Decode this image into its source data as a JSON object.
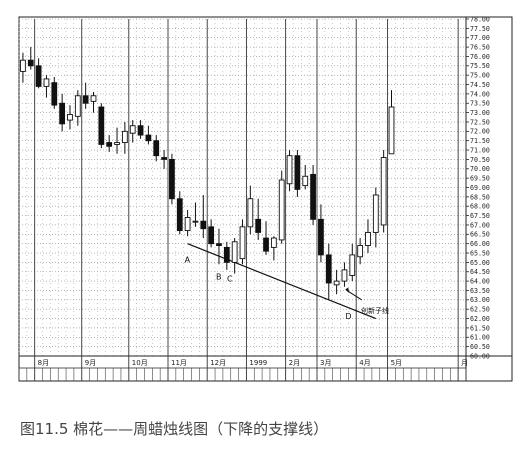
{
  "caption": "图11.5 棉花——周蜡烛线图（下降的支撑线）",
  "chart_data": {
    "type": "candlestick",
    "title": "",
    "xlabel": "",
    "ylabel": "",
    "ylim": [
      60.0,
      78.0
    ],
    "ytick_step": 0.5,
    "y_labels": [
      "78.00",
      "77.50",
      "77.00",
      "76.50",
      "76.00",
      "75.50",
      "75.00",
      "74.50",
      "74.00",
      "73.50",
      "73.00",
      "72.50",
      "72.00",
      "71.50",
      "71.00",
      "70.50",
      "70.00",
      "69.50",
      "69.00",
      "68.50",
      "68.00",
      "67.50",
      "67.00",
      "66.50",
      "66.00",
      "65.50",
      "65.00",
      "64.50",
      "64.00",
      "63.50",
      "63.00",
      "62.50",
      "62.00",
      "61.50",
      "61.00",
      "60.50",
      "60.00"
    ],
    "month_labels": [
      {
        "label": "8月",
        "week": 2
      },
      {
        "label": "9月",
        "week": 8
      },
      {
        "label": "10月",
        "week": 14
      },
      {
        "label": "11月",
        "week": 19
      },
      {
        "label": "12月",
        "week": 24
      },
      {
        "label": "1999",
        "week": 29
      },
      {
        "label": "2月",
        "week": 34
      },
      {
        "label": "3月",
        "week": 38
      },
      {
        "label": "4月",
        "week": 43
      },
      {
        "label": "5月",
        "week": 47
      },
      {
        "label": "月",
        "week": 56
      }
    ],
    "candles": [
      {
        "week": 0,
        "open": 75.2,
        "high": 76.2,
        "low": 74.6,
        "close": 75.8
      },
      {
        "week": 1,
        "open": 75.8,
        "high": 76.5,
        "low": 75.3,
        "close": 75.5
      },
      {
        "week": 2,
        "open": 75.5,
        "high": 75.9,
        "low": 74.3,
        "close": 74.4
      },
      {
        "week": 3,
        "open": 74.4,
        "high": 75.0,
        "low": 73.8,
        "close": 74.8
      },
      {
        "week": 4,
        "open": 74.6,
        "high": 74.9,
        "low": 73.2,
        "close": 73.4
      },
      {
        "week": 5,
        "open": 73.5,
        "high": 74.0,
        "low": 72.0,
        "close": 72.4
      },
      {
        "week": 6,
        "open": 72.6,
        "high": 73.4,
        "low": 72.1,
        "close": 72.9
      },
      {
        "week": 7,
        "open": 72.8,
        "high": 74.2,
        "low": 72.3,
        "close": 73.9
      },
      {
        "week": 8,
        "open": 73.9,
        "high": 74.6,
        "low": 73.2,
        "close": 73.5
      },
      {
        "week": 9,
        "open": 73.6,
        "high": 74.1,
        "low": 73.0,
        "close": 73.9
      },
      {
        "week": 10,
        "open": 73.3,
        "high": 73.5,
        "low": 71.1,
        "close": 71.3
      },
      {
        "week": 11,
        "open": 71.4,
        "high": 71.8,
        "low": 70.9,
        "close": 71.2
      },
      {
        "week": 12,
        "open": 71.3,
        "high": 72.2,
        "low": 70.8,
        "close": 71.4
      },
      {
        "week": 13,
        "open": 71.4,
        "high": 72.5,
        "low": 70.8,
        "close": 72.0
      },
      {
        "week": 14,
        "open": 71.9,
        "high": 72.6,
        "low": 71.4,
        "close": 72.3
      },
      {
        "week": 15,
        "open": 72.3,
        "high": 72.6,
        "low": 71.6,
        "close": 71.8
      },
      {
        "week": 16,
        "open": 71.8,
        "high": 72.3,
        "low": 71.3,
        "close": 71.5
      },
      {
        "week": 17,
        "open": 71.5,
        "high": 71.8,
        "low": 70.4,
        "close": 70.7
      },
      {
        "week": 18,
        "open": 70.6,
        "high": 71.0,
        "low": 70.0,
        "close": 70.5
      },
      {
        "week": 19,
        "open": 70.5,
        "high": 70.8,
        "low": 68.1,
        "close": 68.4
      },
      {
        "week": 20,
        "open": 68.4,
        "high": 68.8,
        "low": 66.5,
        "close": 66.7
      },
      {
        "week": 21,
        "open": 66.7,
        "high": 67.8,
        "low": 66.4,
        "close": 67.4
      },
      {
        "week": 22,
        "open": 67.2,
        "high": 68.2,
        "low": 66.9,
        "close": 67.2
      },
      {
        "week": 23,
        "open": 67.2,
        "high": 68.6,
        "low": 66.3,
        "close": 66.8
      },
      {
        "week": 24,
        "open": 66.9,
        "high": 67.3,
        "low": 65.8,
        "close": 66.0
      },
      {
        "week": 25,
        "open": 66.0,
        "high": 66.8,
        "low": 64.9,
        "close": 65.9
      },
      {
        "week": 26,
        "open": 65.8,
        "high": 66.1,
        "low": 64.6,
        "close": 65.0
      },
      {
        "week": 27,
        "open": 65.0,
        "high": 66.3,
        "low": 64.4,
        "close": 66.1
      },
      {
        "week": 28,
        "open": 65.2,
        "high": 67.3,
        "low": 64.9,
        "close": 66.9
      },
      {
        "week": 29,
        "open": 66.9,
        "high": 69.1,
        "low": 66.5,
        "close": 68.4
      },
      {
        "week": 30,
        "open": 67.3,
        "high": 68.4,
        "low": 66.2,
        "close": 66.6
      },
      {
        "week": 31,
        "open": 66.3,
        "high": 67.2,
        "low": 65.4,
        "close": 65.6
      },
      {
        "week": 32,
        "open": 65.8,
        "high": 66.4,
        "low": 65.1,
        "close": 66.3
      },
      {
        "week": 33,
        "open": 66.2,
        "high": 69.9,
        "low": 66.0,
        "close": 69.4
      },
      {
        "week": 34,
        "open": 69.2,
        "high": 71.0,
        "low": 68.8,
        "close": 70.7
      },
      {
        "week": 35,
        "open": 70.7,
        "high": 71.0,
        "low": 68.5,
        "close": 68.9
      },
      {
        "week": 36,
        "open": 69.1,
        "high": 70.2,
        "low": 68.9,
        "close": 69.6
      },
      {
        "week": 37,
        "open": 69.7,
        "high": 70.2,
        "low": 67.0,
        "close": 67.3
      },
      {
        "week": 38,
        "open": 67.3,
        "high": 68.1,
        "low": 65.0,
        "close": 65.4
      },
      {
        "week": 39,
        "open": 65.4,
        "high": 66.0,
        "low": 63.0,
        "close": 63.9
      },
      {
        "week": 40,
        "open": 63.8,
        "high": 64.6,
        "low": 63.3,
        "close": 64.0
      },
      {
        "week": 41,
        "open": 64.0,
        "high": 65.0,
        "low": 63.7,
        "close": 64.6
      },
      {
        "week": 42,
        "open": 64.3,
        "high": 66.0,
        "low": 64.0,
        "close": 65.4
      },
      {
        "week": 43,
        "open": 65.3,
        "high": 66.3,
        "low": 64.9,
        "close": 65.9
      },
      {
        "week": 44,
        "open": 65.9,
        "high": 67.3,
        "low": 65.5,
        "close": 66.6
      },
      {
        "week": 45,
        "open": 66.6,
        "high": 69.0,
        "low": 65.8,
        "close": 68.6
      },
      {
        "week": 46,
        "open": 67.0,
        "high": 71.0,
        "low": 66.6,
        "close": 70.6
      },
      {
        "week": 47,
        "open": 70.8,
        "high": 74.2,
        "low": 70.9,
        "close": 73.3
      }
    ],
    "trendline": {
      "from": {
        "week": 21,
        "value": 66.0
      },
      "to": {
        "week": 45,
        "value": 62.0
      }
    },
    "annotations": [
      {
        "text": "A",
        "week": 21,
        "value": 65.2
      },
      {
        "text": "B",
        "week": 25,
        "value": 64.3
      },
      {
        "text": "C",
        "week": 26.4,
        "value": 64.2
      },
      {
        "text": "D",
        "week": 41.5,
        "value": 62.2
      },
      {
        "text": "创新子线",
        "week": 43.5,
        "value": 62.5
      }
    ],
    "grid": true,
    "legend": "none"
  }
}
